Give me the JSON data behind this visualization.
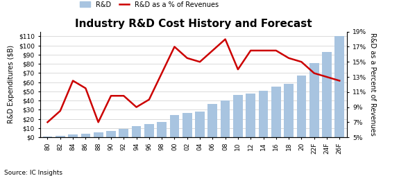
{
  "title": "Industry R&D Cost History and Forecast",
  "source_text": "Source: IC Insights",
  "years": [
    "80",
    "82",
    "84",
    "86",
    "88",
    "90",
    "92",
    "94",
    "96",
    "98",
    "00",
    "02",
    "04",
    "06",
    "08",
    "10",
    "12",
    "14",
    "16",
    "18",
    "20",
    "22F",
    "24F",
    "26F"
  ],
  "rd_spend": [
    1.0,
    1.5,
    3.0,
    4.0,
    5.0,
    7.0,
    9.5,
    12.0,
    14.5,
    17.0,
    24.0,
    26.5,
    28.0,
    36.0,
    40.0,
    46.0,
    47.5,
    51.0,
    55.0,
    58.0,
    67.0,
    81.0,
    93.0,
    110.0
  ],
  "rd_pct": [
    7.0,
    8.5,
    12.5,
    11.5,
    7.0,
    10.5,
    10.5,
    9.0,
    10.0,
    13.5,
    17.0,
    15.5,
    15.0,
    16.5,
    18.0,
    14.0,
    16.5,
    16.5,
    16.5,
    15.5,
    15.0,
    13.5,
    13.0,
    12.5
  ],
  "bar_color": "#a8c4e0",
  "line_color": "#cc0000",
  "ylabel_left": "R&D Expenditures ($B)",
  "ylabel_right": "R&D as a Percent of Revenues",
  "ylim_left": [
    0,
    115
  ],
  "ylim_right": [
    5,
    19
  ],
  "yticks_left": [
    0,
    10,
    20,
    30,
    40,
    50,
    60,
    70,
    80,
    90,
    100,
    110
  ],
  "ytick_labels_left": [
    "$0",
    "$10",
    "$20",
    "$30",
    "$40",
    "$50",
    "$60",
    "$70",
    "$80",
    "$90",
    "$100",
    "$110"
  ],
  "yticks_right": [
    5,
    7,
    9,
    11,
    13,
    15,
    17,
    19
  ],
  "ytick_labels_right": [
    "5%",
    "7%",
    "9%",
    "11%",
    "13%",
    "15%",
    "17%",
    "19%"
  ],
  "title_fontsize": 11,
  "axis_fontsize": 7,
  "tick_fontsize": 6.5,
  "legend_fontsize": 7
}
